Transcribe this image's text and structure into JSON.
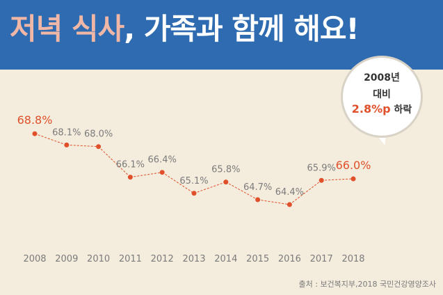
{
  "title": {
    "accent": "저녁 식사",
    "rest": ", 가족과 함께 해요!"
  },
  "bubble": {
    "line1": "2008년",
    "line2": "대비",
    "highlight": "2.8%p",
    "suffix": " 하락"
  },
  "source": "출처 : 보건복지부,2018 국민건강영양조사",
  "colors": {
    "header": "#2f6bb0",
    "background": "#f4ecdd",
    "accent": "#e0502a",
    "label": "#7b7b7b"
  },
  "chart_data": {
    "type": "line",
    "title": "",
    "xlabel": "",
    "ylabel": "",
    "categories": [
      "2008",
      "2009",
      "2010",
      "2011",
      "2012",
      "2013",
      "2014",
      "2015",
      "2016",
      "2017",
      "2018"
    ],
    "values": [
      68.8,
      68.1,
      68.0,
      66.1,
      66.4,
      65.1,
      65.8,
      64.7,
      64.4,
      65.9,
      66.0
    ],
    "labels": [
      "68.8%",
      "68.1%",
      "68.0%",
      "66.1%",
      "66.4%",
      "65.1%",
      "65.8%",
      "64.7%",
      "64.4%",
      "65.9%",
      "66.0%"
    ],
    "highlighted": [
      "2008",
      "2018"
    ],
    "ylim": [
      61.2,
      69.5
    ],
    "grid": false,
    "line_style": "dashed"
  }
}
